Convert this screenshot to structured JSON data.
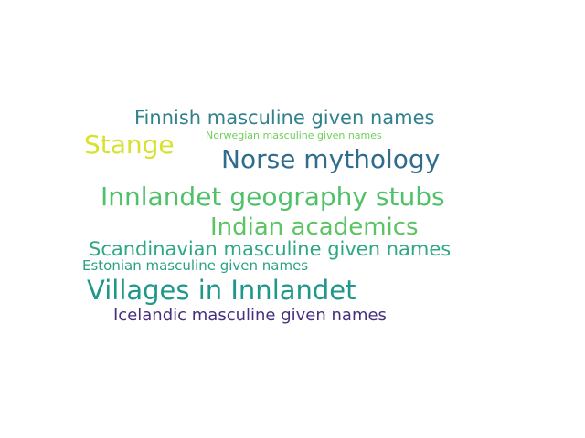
{
  "words": [
    {
      "text": "Finnish masculine given names",
      "color": "#31818c"
    },
    {
      "text": "Stange",
      "color": "#d6e22b"
    },
    {
      "text": "Norwegian masculine given names",
      "color": "#6fcf5a"
    },
    {
      "text": "Norse mythology",
      "color": "#2f6c8d"
    },
    {
      "text": "Innlandet geography stubs",
      "color": "#4fc169"
    },
    {
      "text": "Indian academics",
      "color": "#5cc463"
    },
    {
      "text": "Scandinavian masculine given names",
      "color": "#2ca884"
    },
    {
      "text": "Estonian masculine given names",
      "color": "#2aa184"
    },
    {
      "text": "Villages in Innlandet",
      "color": "#1f978b"
    },
    {
      "text": "Icelandic masculine given names",
      "color": "#472f7d"
    }
  ]
}
